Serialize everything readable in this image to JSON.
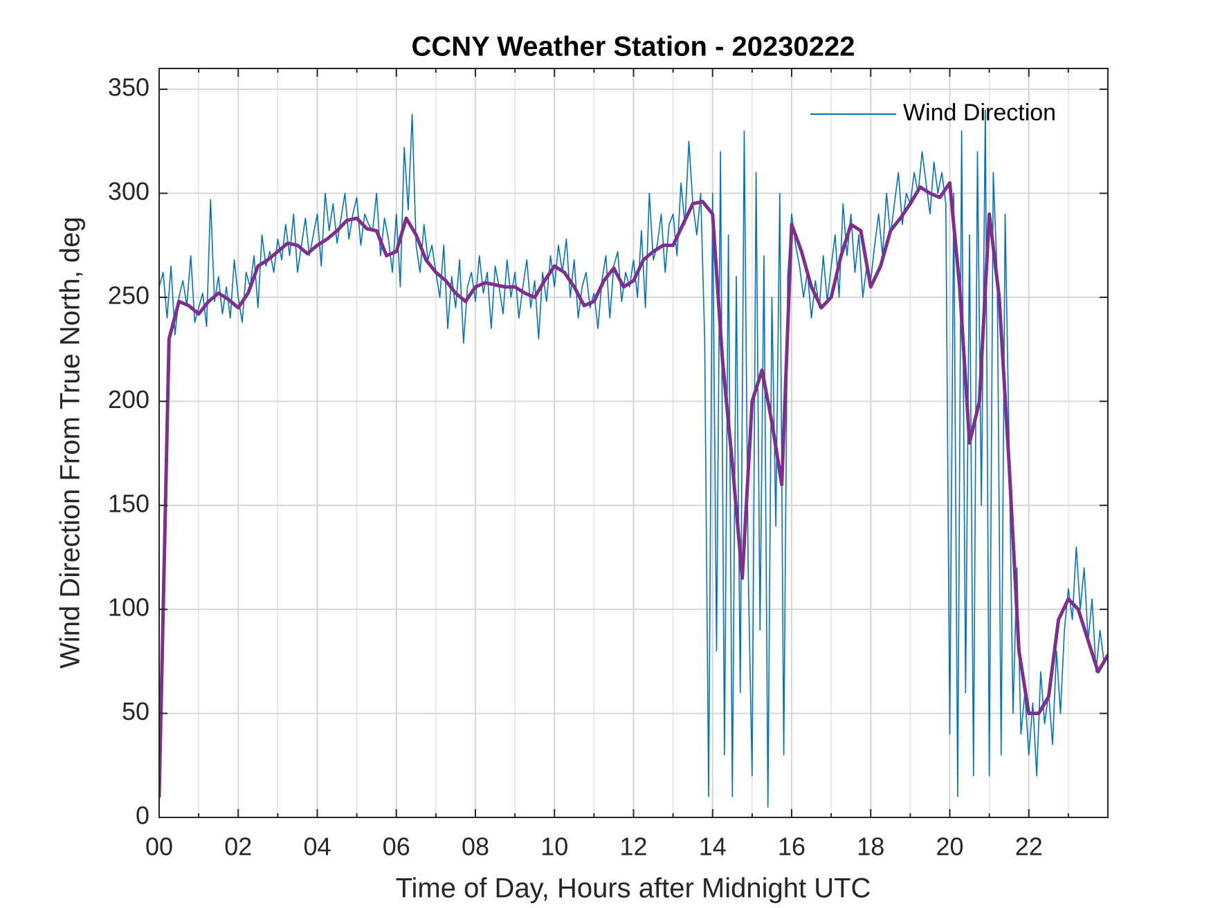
{
  "chart_data": {
    "type": "line",
    "title": "CCNY Weather Station - 20230222",
    "xlabel": "Time of Day, Hours after Midnight UTC",
    "ylabel": "Wind Direction From True North, deg",
    "xlim": [
      0,
      24
    ],
    "ylim": [
      0,
      360
    ],
    "xticks": [
      {
        "value": 0,
        "label": "00"
      },
      {
        "value": 2,
        "label": "02"
      },
      {
        "value": 4,
        "label": "04"
      },
      {
        "value": 6,
        "label": "06"
      },
      {
        "value": 8,
        "label": "08"
      },
      10,
      12,
      14,
      16,
      18,
      20,
      22
    ],
    "xminorticks": [
      1,
      3,
      5,
      7,
      9,
      11,
      13,
      15,
      17,
      19,
      21,
      23
    ],
    "yticks": [
      0,
      50,
      100,
      150,
      200,
      250,
      300,
      350
    ],
    "grid": true,
    "legend": "northeast",
    "series": [
      {
        "name": "Wind Direction",
        "color": "#0072BD",
        "x": [
          0,
          0.1,
          0.2,
          0.3,
          0.4,
          0.5,
          0.6,
          0.7,
          0.8,
          0.9,
          1,
          1.1,
          1.2,
          1.3,
          1.4,
          1.5,
          1.6,
          1.7,
          1.8,
          1.9,
          2,
          2.1,
          2.2,
          2.3,
          2.4,
          2.5,
          2.6,
          2.7,
          2.8,
          2.9,
          3,
          3.1,
          3.2,
          3.3,
          3.4,
          3.5,
          3.6,
          3.7,
          3.8,
          3.9,
          4,
          4.1,
          4.2,
          4.3,
          4.4,
          4.5,
          4.6,
          4.7,
          4.8,
          4.9,
          5,
          5.1,
          5.2,
          5.3,
          5.4,
          5.5,
          5.6,
          5.7,
          5.8,
          5.9,
          6,
          6.1,
          6.2,
          6.3,
          6.4,
          6.5,
          6.6,
          6.7,
          6.8,
          6.9,
          7,
          7.1,
          7.2,
          7.3,
          7.4,
          7.5,
          7.6,
          7.7,
          7.8,
          7.9,
          8,
          8.1,
          8.2,
          8.3,
          8.4,
          8.5,
          8.6,
          8.7,
          8.8,
          8.9,
          9,
          9.1,
          9.2,
          9.3,
          9.4,
          9.5,
          9.6,
          9.7,
          9.8,
          9.9,
          10,
          10.1,
          10.2,
          10.3,
          10.4,
          10.5,
          10.6,
          10.7,
          10.8,
          10.9,
          11,
          11.1,
          11.2,
          11.3,
          11.4,
          11.5,
          11.6,
          11.7,
          11.8,
          11.9,
          12,
          12.1,
          12.2,
          12.3,
          12.4,
          12.5,
          12.6,
          12.7,
          12.8,
          12.9,
          13,
          13.1,
          13.2,
          13.3,
          13.4,
          13.5,
          13.6,
          13.7,
          13.8,
          13.9,
          14,
          14.1,
          14.2,
          14.3,
          14.4,
          14.5,
          14.6,
          14.7,
          14.8,
          14.9,
          15,
          15.1,
          15.2,
          15.3,
          15.4,
          15.5,
          15.6,
          15.7,
          15.8,
          15.9,
          16,
          16.1,
          16.2,
          16.3,
          16.4,
          16.5,
          16.6,
          16.7,
          16.8,
          16.9,
          17,
          17.1,
          17.2,
          17.3,
          17.4,
          17.5,
          17.6,
          17.7,
          17.8,
          17.9,
          18,
          18.1,
          18.2,
          18.3,
          18.4,
          18.5,
          18.6,
          18.7,
          18.8,
          18.9,
          19,
          19.1,
          19.2,
          19.3,
          19.4,
          19.5,
          19.6,
          19.7,
          19.8,
          19.9,
          20,
          20.1,
          20.2,
          20.3,
          20.4,
          20.5,
          20.6,
          20.7,
          20.8,
          20.9,
          21,
          21.1,
          21.2,
          21.3,
          21.4,
          21.5,
          21.6,
          21.7,
          21.8,
          21.9,
          22,
          22.1,
          22.2,
          22.3,
          22.4,
          22.5,
          22.6,
          22.7,
          22.8,
          22.9,
          23,
          23.1,
          23.2,
          23.3,
          23.4,
          23.5,
          23.6,
          23.7,
          23.8,
          23.9
        ],
        "values": [
          255,
          262,
          240,
          265,
          232,
          250,
          258,
          246,
          270,
          238,
          245,
          252,
          236,
          297,
          248,
          260,
          242,
          255,
          240,
          268,
          250,
          238,
          262,
          255,
          270,
          245,
          280,
          265,
          272,
          262,
          278,
          268,
          285,
          270,
          290,
          262,
          275,
          288,
          270,
          280,
          290,
          265,
          300,
          282,
          295,
          276,
          288,
          300,
          278,
          290,
          298,
          275,
          290,
          285,
          282,
          300,
          270,
          288,
          278,
          262,
          290,
          255,
          322,
          292,
          338,
          275,
          262,
          285,
          268,
          275,
          262,
          250,
          275,
          235,
          260,
          245,
          268,
          228,
          255,
          262,
          248,
          270,
          252,
          262,
          235,
          265,
          255,
          242,
          268,
          250,
          262,
          240,
          255,
          268,
          245,
          258,
          230,
          262,
          248,
          270,
          255,
          275,
          262,
          278,
          250,
          268,
          240,
          255,
          262,
          245,
          252,
          235,
          258,
          270,
          240,
          265,
          272,
          248,
          262,
          255,
          268,
          250,
          282,
          245,
          300,
          268,
          275,
          290,
          262,
          285,
          290,
          270,
          305,
          285,
          325,
          295,
          280,
          300,
          230,
          10,
          300,
          80,
          320,
          30,
          280,
          10,
          260,
          60,
          330,
          120,
          20,
          310,
          90,
          270,
          5,
          250,
          140,
          300,
          30,
          260,
          290,
          275,
          265,
          250,
          262,
          240,
          258,
          245,
          270,
          248,
          265,
          280,
          250,
          295,
          270,
          290,
          262,
          280,
          250,
          265,
          258,
          275,
          290,
          270,
          300,
          280,
          295,
          310,
          285,
          300,
          295,
          310,
          300,
          320,
          305,
          290,
          315,
          300,
          310,
          295,
          40,
          300,
          10,
          330,
          60,
          280,
          20,
          320,
          150,
          340,
          20,
          310,
          260,
          30,
          290,
          180,
          50,
          120,
          40,
          60,
          30,
          55,
          20,
          70,
          45,
          60,
          35,
          80,
          50,
          90,
          110,
          95,
          130,
          100,
          120,
          85,
          105,
          70,
          90,
          75
        ]
      },
      {
        "color": "#7E2F8E",
        "x": [
          0,
          0.25,
          0.5,
          0.75,
          1,
          1.25,
          1.5,
          1.75,
          2,
          2.25,
          2.5,
          2.75,
          3,
          3.25,
          3.5,
          3.75,
          4,
          4.25,
          4.5,
          4.75,
          5,
          5.25,
          5.5,
          5.75,
          6,
          6.25,
          6.5,
          6.75,
          7,
          7.25,
          7.5,
          7.75,
          8,
          8.25,
          8.5,
          8.75,
          9,
          9.25,
          9.5,
          9.75,
          10,
          10.25,
          10.5,
          10.75,
          11,
          11.25,
          11.5,
          11.75,
          12,
          12.25,
          12.5,
          12.75,
          13,
          13.25,
          13.5,
          13.75,
          14,
          14.25,
          14.5,
          14.75,
          15,
          15.25,
          15.5,
          15.75,
          16,
          16.25,
          16.5,
          16.75,
          17,
          17.25,
          17.5,
          17.75,
          18,
          18.25,
          18.5,
          18.75,
          19,
          19.25,
          19.5,
          19.75,
          20,
          20.25,
          20.5,
          20.75,
          21,
          21.25,
          21.5,
          21.75,
          22,
          22.25,
          22.5,
          22.75,
          23,
          23.25,
          23.5,
          23.75,
          24
        ],
        "values": [
          10,
          230,
          248,
          246,
          242,
          248,
          252,
          249,
          245,
          252,
          265,
          268,
          272,
          276,
          275,
          271,
          275,
          278,
          282,
          287,
          288,
          283,
          282,
          270,
          272,
          288,
          280,
          268,
          262,
          258,
          252,
          248,
          255,
          257,
          256,
          255,
          255,
          252,
          250,
          258,
          265,
          262,
          255,
          246,
          248,
          258,
          264,
          255,
          258,
          268,
          272,
          275,
          275,
          285,
          295,
          296,
          290,
          220,
          170,
          115,
          200,
          215,
          190,
          160,
          285,
          272,
          255,
          245,
          250,
          270,
          285,
          282,
          255,
          265,
          282,
          288,
          295,
          303,
          300,
          298,
          305,
          255,
          180,
          200,
          290,
          250,
          170,
          80,
          50,
          50,
          58,
          95,
          105,
          100,
          85,
          70,
          78
        ]
      }
    ]
  }
}
